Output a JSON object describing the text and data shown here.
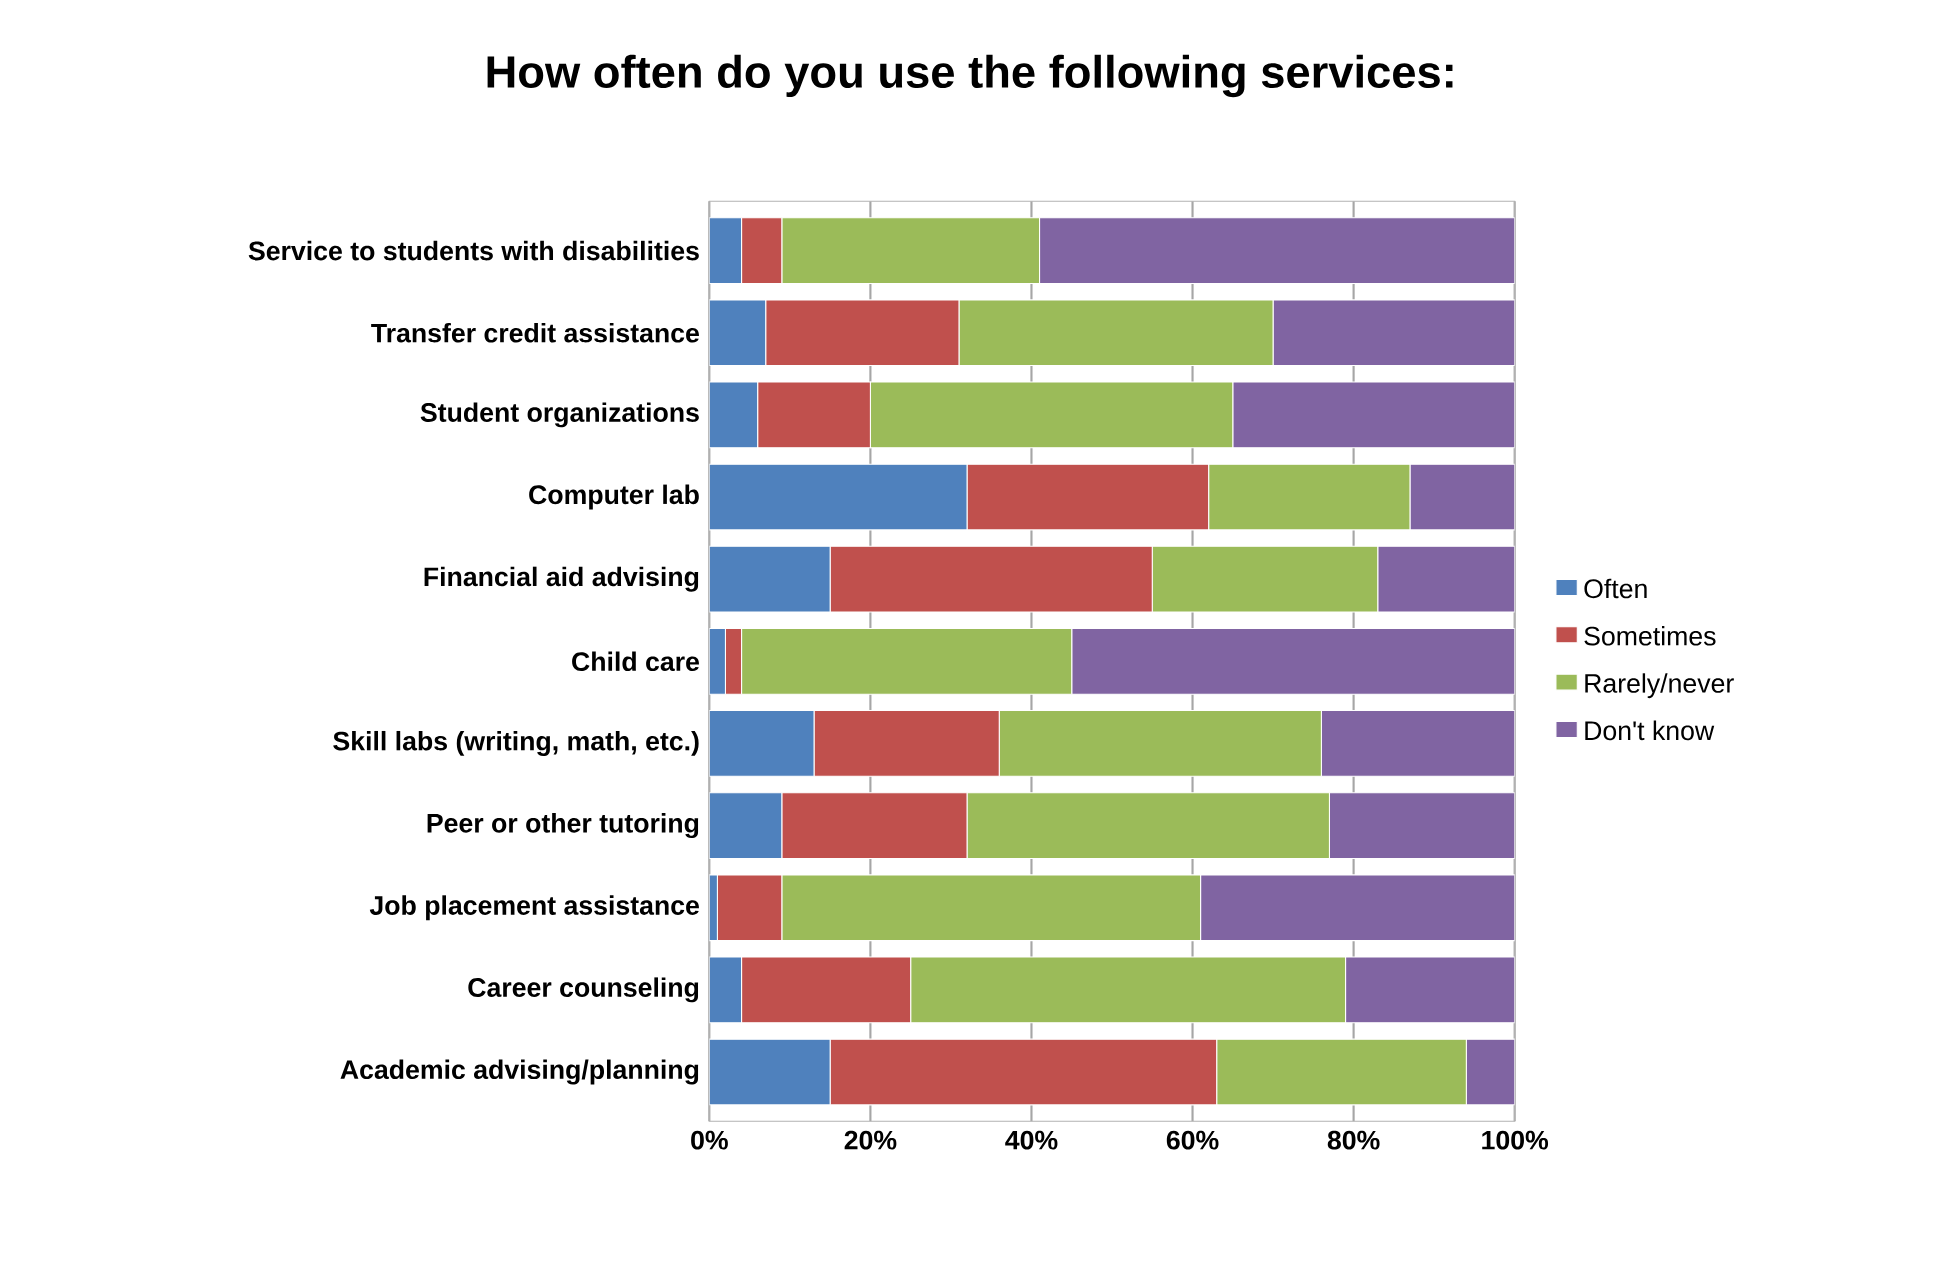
{
  "chart_data": {
    "type": "bar",
    "orientation": "horizontal",
    "stacked": true,
    "title": "How often do you use the following services:",
    "categories": [
      "Service to students with disabilities",
      "Transfer credit assistance",
      "Student organizations",
      "Computer lab",
      "Financial aid advising",
      "Child care",
      "Skill labs (writing, math, etc.)",
      "Peer or other tutoring",
      "Job placement assistance",
      "Career counseling",
      "Academic  advising/planning"
    ],
    "series": [
      {
        "name": "Often",
        "color": "#4f81bd",
        "values": [
          4,
          7,
          6,
          32,
          15,
          2,
          13,
          9,
          1,
          4,
          15
        ]
      },
      {
        "name": "Sometimes",
        "color": "#c0504d",
        "values": [
          5,
          24,
          14,
          30,
          40,
          2,
          23,
          23,
          8,
          21,
          48
        ]
      },
      {
        "name": "Rarely/never",
        "color": "#9bbb59",
        "values": [
          32,
          39,
          45,
          25,
          28,
          41,
          40,
          45,
          52,
          54,
          31
        ]
      },
      {
        "name": "Don't know",
        "color": "#8064a2",
        "values": [
          59,
          30,
          35,
          13,
          17,
          55,
          24,
          23,
          39,
          21,
          6
        ]
      }
    ],
    "xlim": [
      0,
      100
    ],
    "xticks": [
      {
        "value": 0,
        "label": "0%"
      },
      {
        "value": 20,
        "label": "20%"
      },
      {
        "value": 40,
        "label": "40%"
      },
      {
        "value": 60,
        "label": "60%"
      },
      {
        "value": 80,
        "label": "80%"
      },
      {
        "value": 100,
        "label": "100%"
      }
    ],
    "grid": "x",
    "legend": "right"
  }
}
